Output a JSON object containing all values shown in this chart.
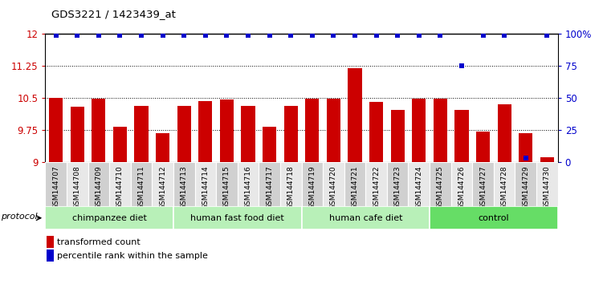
{
  "title": "GDS3221 / 1423439_at",
  "samples": [
    "GSM144707",
    "GSM144708",
    "GSM144709",
    "GSM144710",
    "GSM144711",
    "GSM144712",
    "GSM144713",
    "GSM144714",
    "GSM144715",
    "GSM144716",
    "GSM144717",
    "GSM144718",
    "GSM144719",
    "GSM144720",
    "GSM144721",
    "GSM144722",
    "GSM144723",
    "GSM144724",
    "GSM144725",
    "GSM144726",
    "GSM144727",
    "GSM144728",
    "GSM144729",
    "GSM144730"
  ],
  "values": [
    10.5,
    10.3,
    10.48,
    9.82,
    10.32,
    9.67,
    10.32,
    10.42,
    10.46,
    10.32,
    9.82,
    10.32,
    10.48,
    10.48,
    11.19,
    10.4,
    10.22,
    10.48,
    10.48,
    10.22,
    9.72,
    10.35,
    9.68,
    9.1
  ],
  "percentile_values": [
    99,
    99,
    99,
    99,
    99,
    99,
    99,
    99,
    99,
    99,
    99,
    99,
    99,
    99,
    99,
    99,
    99,
    99,
    99,
    75,
    99,
    99,
    3,
    99
  ],
  "groups": [
    {
      "label": "chimpanzee diet",
      "start": 0,
      "end": 6
    },
    {
      "label": "human fast food diet",
      "start": 6,
      "end": 12
    },
    {
      "label": "human cafe diet",
      "start": 12,
      "end": 18
    },
    {
      "label": "control",
      "start": 18,
      "end": 24
    }
  ],
  "group_colors": [
    "#b8f0b8",
    "#b8f0b8",
    "#b8f0b8",
    "#66dd66"
  ],
  "bar_color": "#CC0000",
  "dot_color": "#0000CC",
  "left_ylim": [
    9.0,
    12.0
  ],
  "right_ylim": [
    0,
    100
  ],
  "left_yticks": [
    9.0,
    9.75,
    10.5,
    11.25,
    12.0
  ],
  "left_yticklabels": [
    "9",
    "9.75",
    "10.5",
    "11.25",
    "12"
  ],
  "right_yticks": [
    0,
    25,
    50,
    75,
    100
  ],
  "right_yticklabels": [
    "0",
    "25",
    "50",
    "75",
    "100%"
  ],
  "grid_values": [
    9.75,
    10.5,
    11.25
  ],
  "bar_width": 0.65,
  "sample_box_colors": [
    "#d0d0d0",
    "#e8e8e8"
  ]
}
